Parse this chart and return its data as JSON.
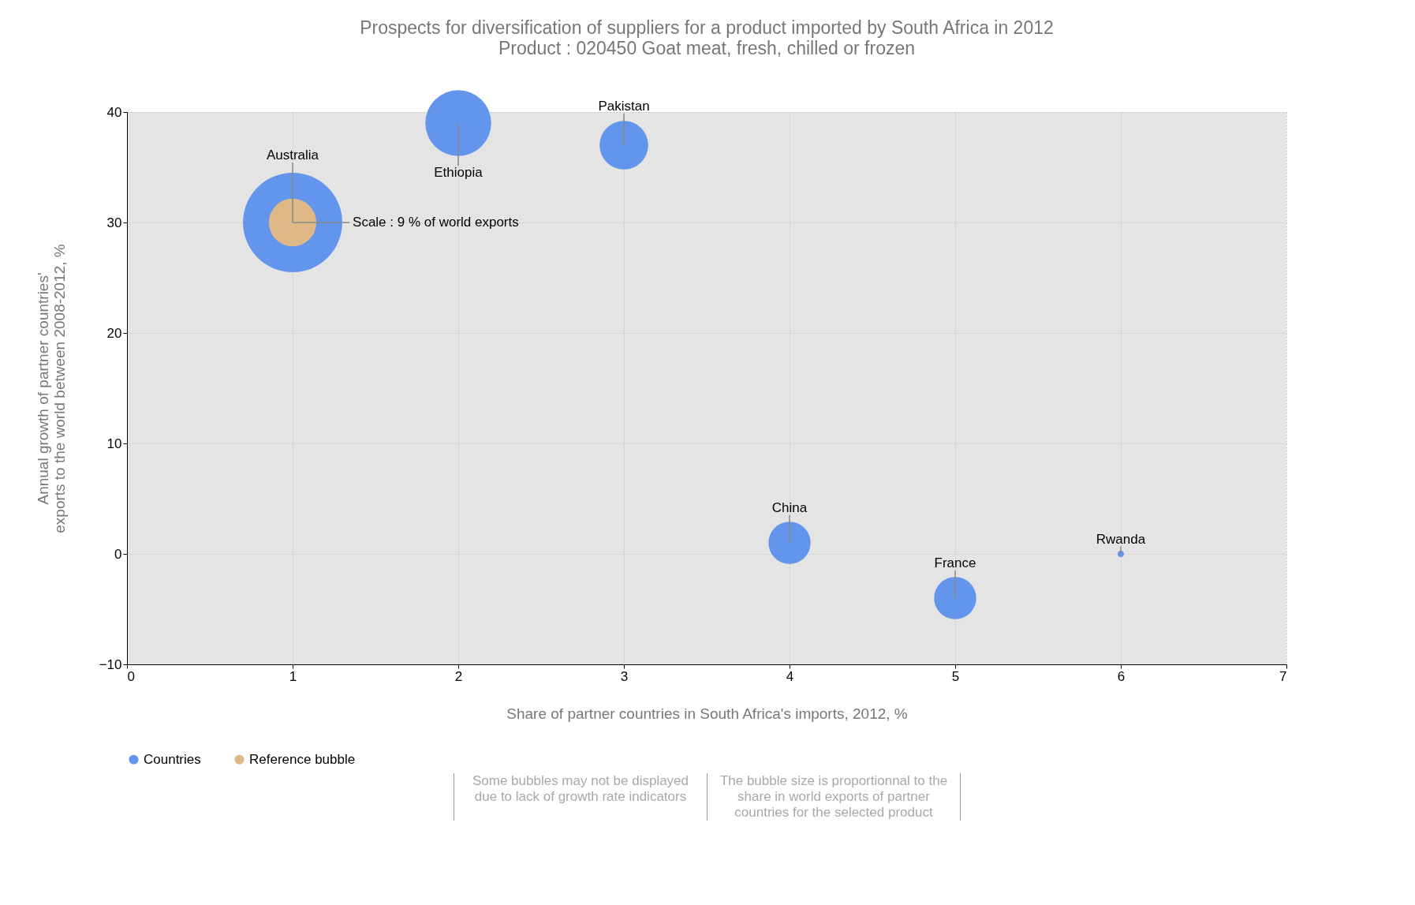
{
  "chart_data": {
    "type": "bubble",
    "title": "Prospects for diversification of suppliers for a product imported by South Africa in 2012",
    "subtitle": "Product : 020450 Goat meat, fresh, chilled or frozen",
    "xlabel": "Share of partner countries in South Africa's imports, 2012, %",
    "ylabel": "Annual growth of partner countries' exports to the world between 2008-2012, %",
    "series": [
      {
        "name": "Countries",
        "color": "#6495ed",
        "x": [
          1,
          2,
          3,
          4,
          5,
          6
        ],
        "values": [
          30,
          39,
          37,
          1,
          -4,
          0
        ],
        "sizes": [
          1,
          0.44,
          0.24,
          0.18,
          0.18,
          0.004
        ]
      },
      {
        "name": "Reference bubble",
        "color": "#deb887",
        "x": [
          1
        ],
        "values": [
          30
        ],
        "sizes": [
          0.23
        ]
      }
    ],
    "xlim": [
      0,
      7
    ],
    "xticks": [
      0,
      1,
      2,
      3,
      4,
      5,
      6,
      7
    ],
    "ylim": [
      -10,
      40
    ],
    "yticks": [
      -10,
      0,
      10,
      20,
      30,
      40
    ],
    "grid": true,
    "legend": "bottom",
    "marker": "circle",
    "annotations": [
      {
        "text": "Australia",
        "x": 1,
        "y": 30
      },
      {
        "text": "Ethiopia",
        "x": 2,
        "y": 39
      },
      {
        "text": "Pakistan",
        "x": 3,
        "y": 37
      },
      {
        "text": "China",
        "x": 4,
        "y": 1
      },
      {
        "text": "France",
        "x": 5,
        "y": -4
      },
      {
        "text": "Rwanda",
        "x": 6,
        "y": 0
      },
      {
        "text": "Scale : 9 % of world exports",
        "x": 1,
        "y": 30
      },
      "Some bubbles may not be displayed due to lack of growth rate indicators",
      "The bubble size is proportionnal to the share in world exports of partner countries for the selected product"
    ]
  }
}
